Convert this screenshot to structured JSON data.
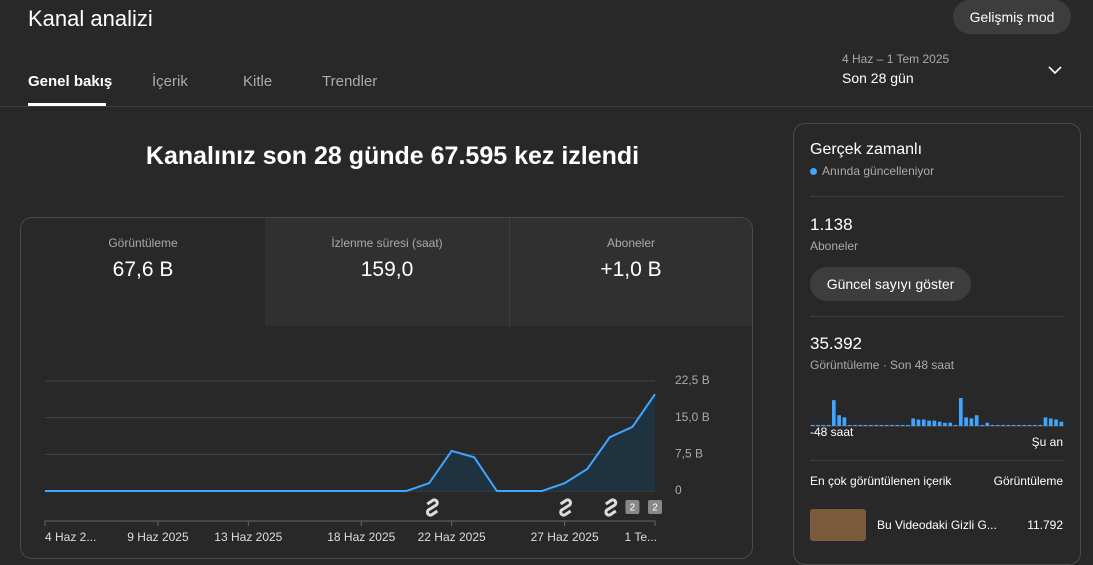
{
  "header": {
    "title": "Kanal analizi",
    "button": "Gelişmiş mod",
    "tabs": [
      "Genel bakış",
      "İçerik",
      "Kitle",
      "Trendler"
    ],
    "date_range": "4 Haz – 1 Tem 2025",
    "period": "Son 28 gün"
  },
  "headline": "Kanalınız son 28 günde 67.595 kez izlendi",
  "metrics": [
    {
      "label": "Görüntüleme",
      "value": "67,6 B"
    },
    {
      "label": "İzlenme süresi (saat)",
      "value": "159,0"
    },
    {
      "label": "Aboneler",
      "value": "+1,0 B"
    }
  ],
  "chart_data": {
    "type": "line",
    "categories": [
      "4 Haz 2...",
      null,
      null,
      null,
      null,
      "9 Haz 2025",
      null,
      null,
      null,
      "13 Haz 2025",
      null,
      null,
      null,
      null,
      "18 Haz 2025",
      null,
      null,
      null,
      "22 Haz 2025",
      null,
      null,
      null,
      null,
      "27 Haz 2025",
      null,
      null,
      null,
      "1 Te..."
    ],
    "values": [
      0,
      0,
      0,
      0,
      0,
      0,
      0,
      0,
      0,
      0,
      0,
      0,
      0,
      0,
      0,
      0,
      0,
      1600,
      8200,
      6900,
      0,
      0,
      0,
      1600,
      4500,
      11000,
      13100,
      19800
    ],
    "color": "#3ea6ff",
    "ylim": [
      0,
      22500
    ],
    "yticks": [
      0,
      {
        "value": 7500,
        "label": "7,5 B"
      },
      {
        "value": 15000,
        "label": "15,0 B"
      },
      {
        "value": 22500,
        "label": "22,5 B"
      }
    ],
    "grid": true,
    "badges": [
      "2",
      "2"
    ]
  },
  "realtime": {
    "title": "Gerçek zamanlı",
    "status": "Anında güncelleniyor",
    "subscribers": {
      "value": "1.138",
      "label": "Aboneler"
    },
    "button": "Güncel sayıyı göster",
    "views": {
      "value": "35.392",
      "label": "Görüntüleme · Son 48 saat"
    },
    "mini_chart": {
      "type": "bar",
      "color": "#3ea6ff",
      "values": [
        190,
        190,
        190,
        190,
        4560,
        1900,
        1520,
        190,
        190,
        190,
        190,
        190,
        190,
        190,
        190,
        190,
        190,
        190,
        190,
        1330,
        1140,
        1140,
        950,
        950,
        760,
        570,
        570,
        190,
        4940,
        1520,
        1330,
        1900,
        190,
        570,
        190,
        190,
        190,
        190,
        190,
        190,
        190,
        190,
        190,
        190,
        1520,
        1330,
        1140,
        760
      ]
    },
    "axis_start": "-48 saat",
    "axis_end": "Şu an",
    "top": {
      "header": "En çok görüntülenen içerik",
      "column": "Görüntüleme",
      "items": [
        {
          "title": "Bu Videodaki Gizli G...",
          "views": "11.792"
        }
      ]
    }
  }
}
